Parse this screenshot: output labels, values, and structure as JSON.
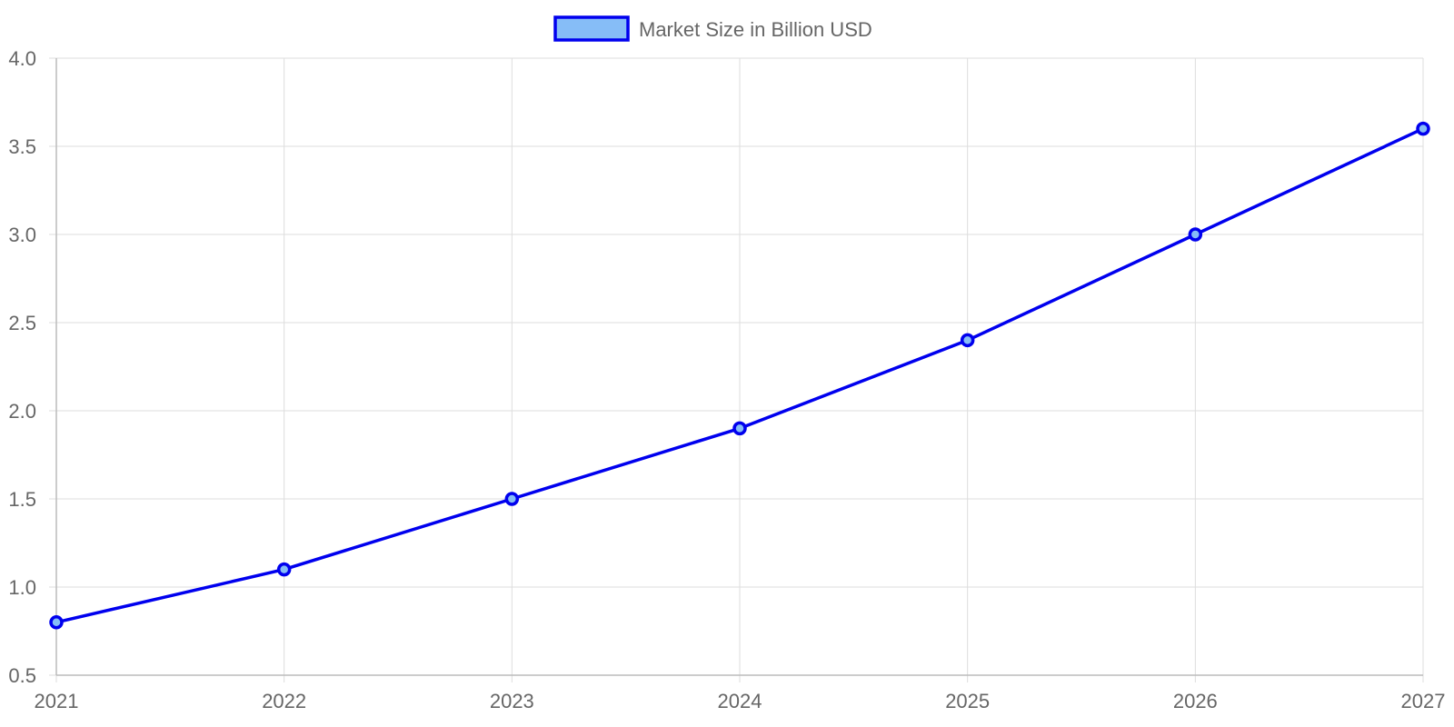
{
  "chart_data": {
    "type": "line",
    "x": [
      "2021",
      "2022",
      "2023",
      "2024",
      "2025",
      "2026",
      "2027"
    ],
    "series": [
      {
        "name": "Market Size in Billion USD",
        "values": [
          0.8,
          1.1,
          1.5,
          1.9,
          2.4,
          3.0,
          3.6
        ],
        "color": "#0000ee",
        "fill_color": "#86bdf7"
      }
    ],
    "ylim": [
      0.5,
      4.0
    ],
    "yticks": [
      "0.5",
      "1.0",
      "1.5",
      "2.0",
      "2.5",
      "3.0",
      "3.5",
      "4.0"
    ],
    "grid": true,
    "legend_position": "top-center",
    "grid_color": "#dddddd",
    "axis_color": "#bbbbbb",
    "label_color": "#666666"
  }
}
